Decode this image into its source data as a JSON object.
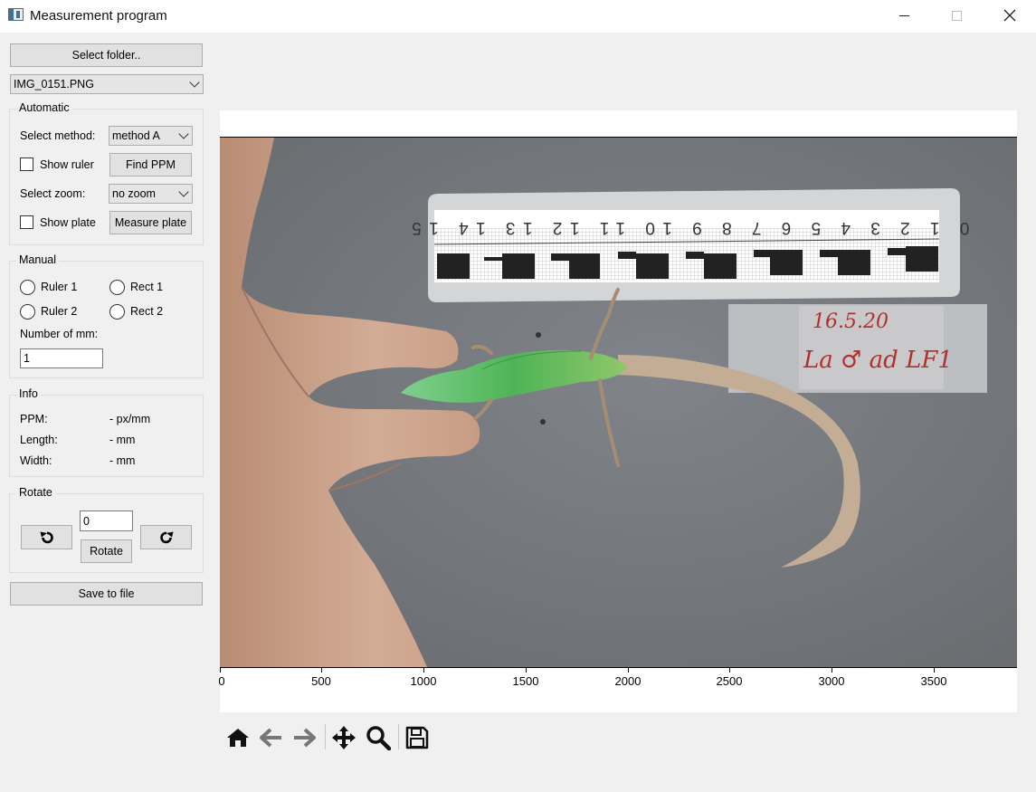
{
  "window": {
    "title": "Measurement program",
    "close_glyph": "✕"
  },
  "controls": {
    "select_folder_label": "Select folder..",
    "file_combo_value": "IMG_0151.PNG"
  },
  "automatic": {
    "title": "Automatic",
    "select_method_label": "Select method:",
    "method_value": "method A",
    "show_ruler_label": "Show ruler",
    "find_ppm_label": "Find PPM",
    "select_zoom_label": "Select zoom:",
    "zoom_value": "no zoom",
    "show_plate_label": "Show plate",
    "measure_plate_label": "Measure plate"
  },
  "manual": {
    "title": "Manual",
    "ruler1_label": "Ruler 1",
    "rect1_label": "Rect 1",
    "ruler2_label": "Ruler 2",
    "rect2_label": "Rect 2",
    "number_of_mm_label": "Number of mm:",
    "number_of_mm_value": "1"
  },
  "info": {
    "title": "Info",
    "ppm_label": "PPM:",
    "ppm_value": "- px/mm",
    "length_label": "Length:",
    "length_value": "- mm",
    "width_label": "Width:",
    "width_value": "- mm"
  },
  "rotate": {
    "title": "Rotate",
    "angle_value": "0",
    "rotate_label": "Rotate",
    "rotate_left_glyph": "↺",
    "rotate_right_glyph": "↻"
  },
  "save_label": "Save to file",
  "photo": {
    "ruler_digits": "0 1 2 3 4 5 6 7 8 9 10 11 12 13 14 15",
    "plate_line1": "16.5.20",
    "plate_line2": "La ♂ ad LF1"
  },
  "plot": {
    "x_ticks": [
      "0",
      "500",
      "1000",
      "1500",
      "2000",
      "2500",
      "3000",
      "3500"
    ],
    "background_color": "#76797b"
  },
  "toolbar": {
    "home_icon": "home-icon",
    "back_icon": "arrow-left-icon",
    "forward_icon": "arrow-right-icon",
    "pan_icon": "move-icon",
    "zoom_icon": "zoom-icon",
    "save_icon": "floppy-disk-icon"
  }
}
